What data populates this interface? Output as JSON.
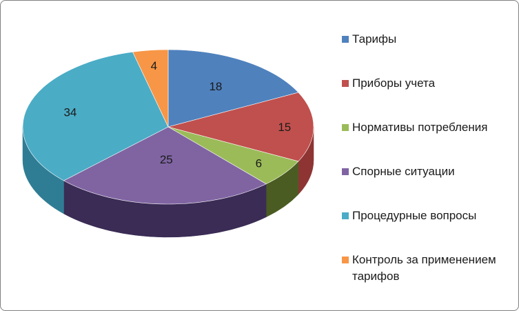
{
  "chart_data": {
    "type": "pie",
    "three_d": true,
    "legend_position": "right",
    "slices": [
      {
        "label": "Тарифы",
        "value": 18,
        "color": "#4f81bd",
        "side_color": "#3a5f8c"
      },
      {
        "label": "Приборы учета",
        "value": 15,
        "color": "#c0504d",
        "side_color": "#8e3533"
      },
      {
        "label": "Нормативы потребления",
        "value": 6,
        "color": "#9bbb59",
        "side_color": "#4a5c22"
      },
      {
        "label": "Спорные ситуации",
        "value": 25,
        "color": "#8064a2",
        "side_color": "#3a2c55"
      },
      {
        "label": "Процедурные вопросы",
        "value": 34,
        "color": "#4bacc6",
        "side_color": "#2f7d94"
      },
      {
        "label": "Контроль за применением тарифов",
        "value": 4,
        "color": "#f79646",
        "side_color": "#b8651c"
      }
    ]
  }
}
